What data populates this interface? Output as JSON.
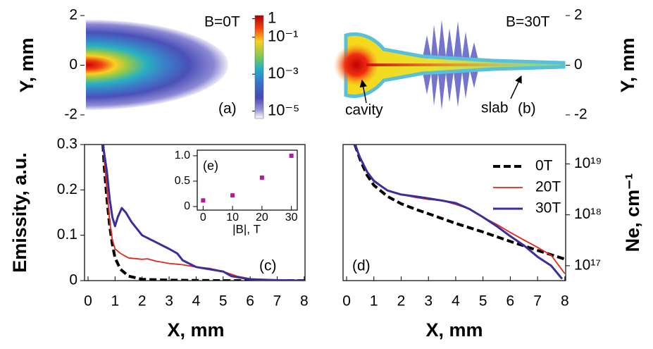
{
  "chart_data": [
    {
      "type": "heatmap",
      "ylabel": "Y, mm",
      "ylim": [
        -2.2,
        2.2
      ],
      "yticks": [
        -2,
        0,
        2
      ],
      "y_axis_side": "left",
      "annotations": [
        "B=0T",
        "(a)"
      ],
      "colorbar": {
        "log": true,
        "clim": [
          4e-06,
          1.5
        ],
        "ticks": [
          1,
          {
            "value": 0.1,
            "label": "10⁻¹"
          },
          {
            "value": 0.001,
            "label": "10⁻³"
          },
          {
            "value": 1e-05,
            "label": "10⁻⁵"
          }
        ]
      }
    },
    {
      "type": "heatmap",
      "ylabel": "Y, mm",
      "ylim": [
        -2.2,
        2.2
      ],
      "yticks": [
        -2,
        0,
        2
      ],
      "y_axis_side": "right",
      "annotations": [
        "B=30T",
        "cavity",
        "slab",
        "(b)"
      ]
    },
    {
      "type": "line",
      "xlabel": "X, mm",
      "ylabel": "Emissity, a.u.",
      "xlim": [
        -0.13,
        8.03
      ],
      "ylim": [
        0,
        0.3
      ],
      "xticks": [
        0,
        1,
        2,
        3,
        4,
        5,
        6,
        7,
        8
      ],
      "yticks": [
        0,
        0.1,
        0.2,
        0.3
      ],
      "y_axis_side": "left",
      "annotations": [
        "(c)"
      ],
      "series": [
        {
          "color": "#000000",
          "style": "dashed",
          "linewidth": 4,
          "x": [
            0.55,
            0.6,
            0.7,
            0.8,
            0.9,
            1.0,
            1.2,
            1.5,
            2,
            3,
            4,
            5,
            8
          ],
          "values": [
            0.3,
            0.25,
            0.18,
            0.12,
            0.08,
            0.05,
            0.025,
            0.01,
            0.003,
            0.001,
            0.0005,
            0,
            0
          ]
        },
        {
          "color": "#e0281e",
          "style": "solid",
          "linewidth": 1.8,
          "x": [
            0.55,
            0.7,
            0.8,
            0.9,
            1.0,
            1.2,
            1.5,
            2,
            2.2,
            2.5,
            3,
            3.5,
            4,
            4.5,
            5,
            5.5,
            6,
            7,
            8
          ],
          "values": [
            0.3,
            0.2,
            0.13,
            0.09,
            0.07,
            0.06,
            0.05,
            0.047,
            0.048,
            0.043,
            0.038,
            0.035,
            0.03,
            0.027,
            0.02,
            0.01,
            0.004,
            0.001,
            0
          ]
        },
        {
          "color": "#3a2f9a",
          "style": "solid",
          "linewidth": 3,
          "x": [
            0.55,
            0.7,
            0.8,
            0.9,
            1.0,
            1.1,
            1.25,
            1.4,
            1.6,
            2.0,
            2.5,
            3.0,
            3.3,
            3.5,
            4,
            4.5,
            5,
            5.3,
            6,
            7,
            8
          ],
          "values": [
            0.3,
            0.24,
            0.18,
            0.14,
            0.12,
            0.14,
            0.16,
            0.15,
            0.13,
            0.1,
            0.085,
            0.07,
            0.06,
            0.045,
            0.03,
            0.025,
            0.02,
            0.01,
            0.003,
            0.001,
            0
          ]
        }
      ]
    },
    {
      "type": "line",
      "xlabel": "X, mm",
      "ylabel": "Ne, cm⁻¹",
      "log_y": true,
      "xlim": [
        -0.13,
        8.03
      ],
      "ylim": [
        5.1e+16,
        2.4e+19
      ],
      "xticks": [
        0,
        1,
        2,
        3,
        4,
        5,
        6,
        7,
        8
      ],
      "yticks": [
        {
          "value": 1e+17,
          "label": "10¹⁷"
        },
        {
          "value": 1e+18,
          "label": "10¹⁸"
        },
        {
          "value": 1e+19,
          "label": "10¹⁹"
        }
      ],
      "y_axis_side": "right",
      "legend": "upper right",
      "annotations": [
        "(d)"
      ],
      "series": [
        {
          "name": "0T",
          "color": "#000000",
          "style": "dashed",
          "linewidth": 4,
          "x": [
            0.3,
            0.5,
            0.75,
            1,
            1.5,
            2,
            2.5,
            3,
            4,
            5,
            6,
            7,
            8
          ],
          "values": [
            2.4e+19,
            1.2e+19,
            6e+18,
            3.8e+18,
            2.3e+18,
            1.65e+18,
            1.3e+18,
            1.05e+18,
            6.8e+17,
            4.6e+17,
            3e+17,
            2e+17,
            1.35e+17
          ]
        },
        {
          "name": "20T",
          "color": "#e0281e",
          "style": "solid",
          "linewidth": 1.8,
          "x": [
            0.3,
            0.5,
            0.75,
            1,
            1.5,
            2,
            2.5,
            3,
            3.5,
            4,
            4.5,
            5,
            5.5,
            6,
            6.5,
            7,
            7.5,
            8
          ],
          "values": [
            2.4e+19,
            1.3e+19,
            7e+18,
            4.8e+18,
            3e+18,
            2.5e+18,
            2.2e+18,
            2e+18,
            1.9e+18,
            1.6e+18,
            1.3e+18,
            9e+17,
            6.5e+17,
            4.5e+17,
            3.2e+17,
            2.3e+17,
            1.6e+17,
            7e+16
          ]
        },
        {
          "name": "30T",
          "color": "#3a2f9a",
          "style": "solid",
          "linewidth": 3,
          "x": [
            0.3,
            0.5,
            0.75,
            1,
            1.5,
            2,
            2.5,
            3,
            3.5,
            4,
            4.5,
            5,
            5.5,
            6,
            6.5,
            7,
            7.5,
            7.9
          ],
          "values": [
            2.4e+19,
            1.3e+19,
            7e+18,
            4.6e+18,
            3e+18,
            2.5e+18,
            2.3e+18,
            2.1e+18,
            1.9e+18,
            1.7e+18,
            1.3e+18,
            9e+17,
            6e+17,
            3.8e+17,
            2.5e+17,
            1.5e+17,
            1e+17,
            5.5e+16
          ]
        }
      ]
    },
    {
      "type": "scatter",
      "xlabel": "|B|, T",
      "xlim": [
        -2,
        32
      ],
      "ylim": [
        -0.07,
        1.11
      ],
      "xticks": [
        0,
        10,
        20,
        30
      ],
      "yticks": [
        0,
        0.5,
        {
          "value": 1,
          "label": "1.0"
        }
      ],
      "y_axis_side": "left",
      "annotations": [
        "(e)"
      ],
      "color": "#b5179e",
      "x": [
        0,
        10,
        20,
        30
      ],
      "values": [
        0.12,
        0.22,
        0.57,
        1.0
      ]
    }
  ]
}
